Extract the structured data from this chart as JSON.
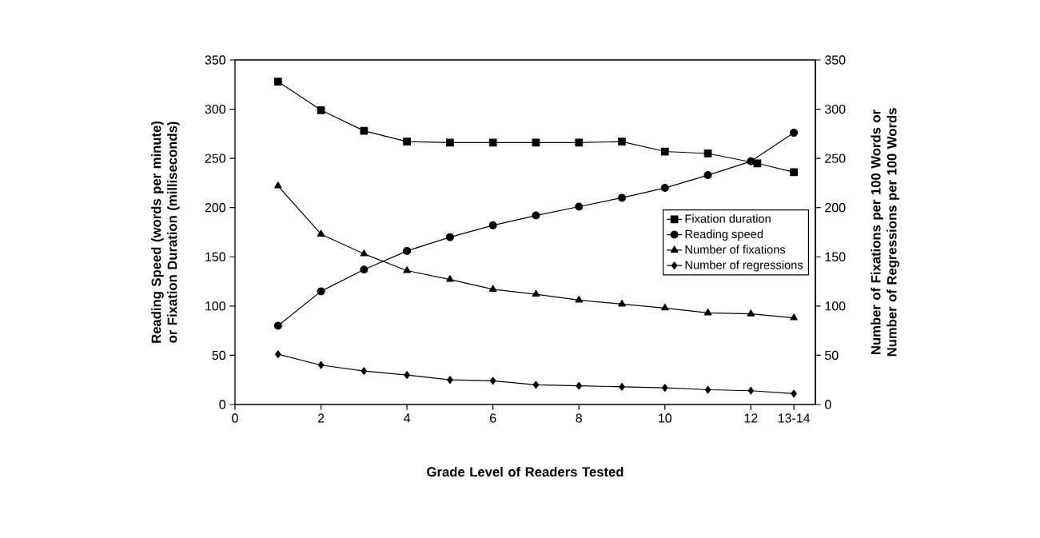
{
  "chart_data": {
    "type": "line",
    "xlabel": "Grade Level of Readers Tested",
    "ylabel": "Reading Speed (words per minute) or Fixation Duration (milliseconds)",
    "y2label": "Number of Fixations per 100 Words or Number of Regressions per 100 Words",
    "x": [
      1,
      2,
      3,
      4,
      5,
      6,
      7,
      8,
      9,
      10,
      11,
      12,
      13
    ],
    "xlim": [
      0,
      13.5
    ],
    "xticks": [
      0,
      2,
      4,
      6,
      8,
      10,
      12,
      {
        "value": 13,
        "label": "13-14"
      }
    ],
    "ylim": [
      0,
      350
    ],
    "yticks": [
      0,
      50,
      100,
      150,
      200,
      250,
      300,
      350
    ],
    "y2lim": [
      0,
      350
    ],
    "y2ticks": [
      0,
      50,
      100,
      150,
      200,
      250,
      300,
      350
    ],
    "grid": false,
    "legend": "right",
    "line_style": "solid",
    "series": [
      {
        "name": "Fixation duration",
        "color": "#000000",
        "marker": "square",
        "x": [
          1,
          2,
          3,
          4,
          5,
          6,
          7,
          8,
          9,
          10,
          11,
          12.15,
          13
        ],
        "values": [
          328,
          299,
          278,
          267,
          266,
          266,
          266,
          266,
          267,
          257,
          255,
          245,
          236
        ]
      },
      {
        "name": "Reading speed",
        "color": "#000000",
        "marker": "circle",
        "values": [
          80,
          115,
          137,
          156,
          170,
          182,
          192,
          201,
          210,
          220,
          233,
          247,
          276
        ]
      },
      {
        "name": "Number of fixations",
        "color": "#000000",
        "marker": "triangle",
        "axis": "y2",
        "values": [
          222,
          173,
          153,
          136,
          127,
          117,
          112,
          106,
          102,
          98,
          93,
          92,
          88
        ]
      },
      {
        "name": "Number of regressions",
        "color": "#000000",
        "marker": "diamond",
        "axis": "y2",
        "values": [
          51,
          40,
          34,
          30,
          25,
          24,
          20,
          19,
          18,
          17,
          15,
          14,
          11
        ]
      }
    ]
  }
}
